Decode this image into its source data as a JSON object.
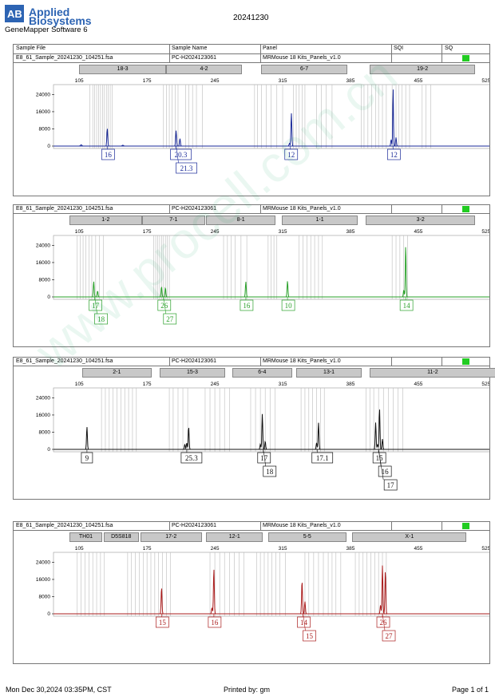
{
  "header": {
    "brand_line1": "Applied",
    "brand_line2": "Biosystems",
    "app_name": "GeneMapper Software 6",
    "doc_title": "20241230"
  },
  "columns": {
    "sample_file": "Sample File",
    "sample_name": "Sample Name",
    "panel": "Panel",
    "sqi": "SQI",
    "sq": "SQ"
  },
  "footer": {
    "date": "Mon Dec 30,2024 03:35PM, CST",
    "printed_by": "Printed by: gm",
    "page": "Page 1 of 1"
  },
  "watermark": "www.procell.com.cn",
  "colors": {
    "status_ok": "#22cc22"
  },
  "chart_data": [
    {
      "type": "line",
      "sample_file": "E8_61_Sample_20241230_104251.fsa",
      "sample_name": "PC-H2024123061",
      "panel": "MRMouse 18 Kits_Panels_v1.0",
      "color": "#1a2a99",
      "xticks": [
        105,
        175,
        245,
        315,
        385,
        455,
        525
      ],
      "yticks": [
        0,
        8000,
        16000,
        24000
      ],
      "xlim": [
        90,
        535
      ],
      "ylim": [
        0,
        27500
      ],
      "markers": [
        {
          "label": "18-3",
          "x0": 105,
          "x1": 193
        },
        {
          "label": "4-2",
          "x0": 195,
          "x1": 271
        },
        {
          "label": "6-7",
          "x0": 293,
          "x1": 380
        },
        {
          "label": "19-2",
          "x0": 405,
          "x1": 512
        }
      ],
      "bins": [
        [
          116,
          119,
          121,
          123,
          125,
          127,
          129,
          131,
          133,
          135,
          137,
          139
        ],
        [
          192,
          195,
          198,
          201,
          204,
          207
        ],
        [
          215,
          218,
          222,
          226,
          232
        ],
        [
          286,
          289,
          293,
          298,
          303,
          309,
          315
        ],
        [
          326,
          329,
          332,
          335,
          338
        ],
        [
          350,
          355,
          360,
          366
        ],
        [
          396,
          399,
          403,
          407,
          411,
          414,
          418,
          422
        ],
        [
          428,
          432,
          435,
          438,
          442,
          446
        ],
        [
          459,
          463,
          468
        ]
      ],
      "peaks": [
        [
          134,
          8200,
          1.0
        ],
        [
          205,
          7200,
          1.0
        ],
        [
          209,
          3500,
          1.0
        ],
        [
          324,
          15300,
          1.0
        ],
        [
          322,
          1200,
          1.0
        ],
        [
          427,
          3000,
          1.0
        ],
        [
          429,
          27500,
          0.8
        ],
        [
          432,
          4000,
          1.0
        ],
        [
          107,
          600,
          1.5
        ],
        [
          150,
          400,
          1.5
        ]
      ],
      "alleles": [
        {
          "x": 134,
          "labels": [
            "16"
          ]
        },
        {
          "x": 205,
          "labels": [
            "20.3",
            "21.3"
          ]
        },
        {
          "x": 323,
          "labels": [
            "12"
          ]
        },
        {
          "x": 429,
          "labels": [
            "12"
          ]
        }
      ]
    },
    {
      "type": "line",
      "sample_file": "E8_61_Sample_20241230_104251.fsa",
      "sample_name": "PC-H2024123061",
      "panel": "MRMouse 18 Kits_Panels_v1.0",
      "color": "#2aa02a",
      "xticks": [
        105,
        175,
        245,
        315,
        385,
        455,
        525
      ],
      "yticks": [
        0,
        8000,
        16000,
        24000
      ],
      "xlim": [
        90,
        535
      ],
      "ylim": [
        0,
        27500
      ],
      "markers": [
        {
          "label": "1-2",
          "x0": 95,
          "x1": 168
        },
        {
          "label": "7-1",
          "x0": 170,
          "x1": 233
        },
        {
          "label": "8-1",
          "x0": 236,
          "x1": 306
        },
        {
          "label": "1-1",
          "x0": 314,
          "x1": 391
        },
        {
          "label": "3-2",
          "x0": 401,
          "x1": 512
        }
      ],
      "bins": [
        [
          103,
          106,
          109,
          112,
          115,
          118,
          122,
          126,
          130
        ],
        [
          182,
          184,
          186,
          188,
          190,
          192,
          194,
          196,
          198
        ],
        [
          254,
          258,
          262,
          266,
          272,
          278
        ],
        [
          300,
          303,
          306,
          309
        ],
        [
          332,
          336,
          340,
          344,
          348,
          352,
          356
        ],
        [
          428,
          432,
          436,
          440,
          444
        ]
      ],
      "peaks": [
        [
          120,
          7200,
          1.0
        ],
        [
          124,
          2800,
          1.0
        ],
        [
          190,
          4800,
          1.0
        ],
        [
          194,
          4300,
          1.0
        ],
        [
          277,
          7100,
          1.0
        ],
        [
          320,
          7400,
          1.0
        ],
        [
          442,
          24200,
          0.9
        ],
        [
          440,
          3200,
          1.0
        ]
      ],
      "alleles": [
        {
          "x": 121,
          "labels": [
            "17",
            "18"
          ]
        },
        {
          "x": 192,
          "labels": [
            "26",
            "27"
          ]
        },
        {
          "x": 277,
          "labels": [
            "16"
          ]
        },
        {
          "x": 320,
          "labels": [
            "10"
          ]
        },
        {
          "x": 442,
          "labels": [
            "14"
          ]
        }
      ]
    },
    {
      "type": "line",
      "sample_file": "E8_61_Sample_20241230_104251.fsa",
      "sample_name": "PC-H2024123061",
      "panel": "MRMouse 18 Kits_Panels_v1.0",
      "color": "#111111",
      "xticks": [
        105,
        175,
        245,
        315,
        385,
        455,
        525
      ],
      "yticks": [
        0,
        8000,
        16000,
        24000
      ],
      "xlim": [
        90,
        535
      ],
      "ylim": [
        0,
        27500
      ],
      "markers": [
        {
          "label": "2-1",
          "x0": 108,
          "x1": 178
        },
        {
          "label": "15-3",
          "x0": 188,
          "x1": 254
        },
        {
          "label": "6-4",
          "x0": 263,
          "x1": 323
        },
        {
          "label": "13-1",
          "x0": 329,
          "x1": 395
        },
        {
          "label": "11-2",
          "x0": 405,
          "x1": 533
        }
      ],
      "bins": [
        [
          128,
          132,
          136,
          140,
          144,
          148,
          152,
          156,
          160,
          164
        ],
        [
          198,
          202,
          207,
          212,
          217
        ],
        [
          235,
          240,
          245,
          250,
          255,
          260
        ],
        [
          282,
          287,
          292,
          297,
          302,
          307
        ],
        [
          334,
          338,
          342,
          346,
          350,
          354,
          358
        ],
        [
          401,
          405,
          409,
          414,
          419,
          424,
          429,
          434,
          439
        ]
      ],
      "peaks": [
        [
          113,
          10500,
          1.0
        ],
        [
          214,
          2400,
          1.0
        ],
        [
          216,
          3000,
          1.0
        ],
        [
          218,
          10500,
          1.0
        ],
        [
          292,
          2400,
          1.0
        ],
        [
          294,
          16500,
          1.0
        ],
        [
          297,
          3800,
          1.0
        ],
        [
          350,
          3000,
          1.0
        ],
        [
          352,
          12500,
          1.0
        ],
        [
          411,
          12500,
          1.0
        ],
        [
          413,
          2400,
          1.0
        ],
        [
          415,
          19000,
          1.0
        ],
        [
          418,
          4800,
          1.0
        ]
      ],
      "alleles": [
        {
          "x": 113,
          "labels": [
            "9"
          ]
        },
        {
          "x": 216,
          "labels": [
            "25.3"
          ]
        },
        {
          "x": 295,
          "labels": [
            "17",
            "18"
          ]
        },
        {
          "x": 351,
          "labels": [
            "17.1"
          ]
        },
        {
          "x": 414,
          "labels": [
            "15",
            "16",
            "17"
          ]
        }
      ]
    },
    {
      "type": "line",
      "sample_file": "E8_61_Sample_20241230_104251.fsa",
      "sample_name": "PC-H2024123061",
      "panel": "MRMouse 18 Kits_Panels_v1.0",
      "color": "#aa1c1c",
      "xticks": [
        105,
        175,
        245,
        315,
        385,
        455,
        525
      ],
      "yticks": [
        0,
        8000,
        16000,
        24000
      ],
      "xlim": [
        90,
        535
      ],
      "ylim": [
        0,
        27500
      ],
      "markers": [
        {
          "label": "TH01",
          "x0": 95,
          "x1": 127
        },
        {
          "label": "D5S818",
          "x0": 130,
          "x1": 165
        },
        {
          "label": "17-2",
          "x0": 168,
          "x1": 230
        },
        {
          "label": "12-1",
          "x0": 236,
          "x1": 293
        },
        {
          "label": "5-5",
          "x0": 300,
          "x1": 379
        },
        {
          "label": "X-1",
          "x0": 387,
          "x1": 503
        }
      ],
      "bins": [
        [
          103,
          107,
          111,
          115,
          119,
          123,
          127,
          131
        ],
        [
          155,
          159,
          163,
          167,
          171,
          175,
          179,
          183,
          187,
          191,
          195,
          199
        ],
        [
          240,
          245,
          250,
          255,
          260,
          265,
          270,
          275
        ],
        [
          288,
          292,
          296,
          300,
          304,
          308,
          312,
          318
        ],
        [
          338,
          342,
          347,
          352,
          357,
          362,
          366,
          370,
          375
        ],
        [
          390,
          394,
          398,
          402,
          406,
          410,
          414,
          418,
          422
        ]
      ],
      "peaks": [
        [
          190,
          12200,
          1.0
        ],
        [
          244,
          21000,
          1.0
        ],
        [
          242,
          2800,
          1.0
        ],
        [
          335,
          15400,
          1.0
        ],
        [
          338,
          5700,
          1.0
        ],
        [
          416,
          4000,
          1.0
        ],
        [
          418,
          22500,
          1.0
        ],
        [
          421,
          20200,
          1.0
        ]
      ],
      "alleles": [
        {
          "x": 190,
          "labels": [
            "15"
          ]
        },
        {
          "x": 244,
          "labels": [
            "16"
          ]
        },
        {
          "x": 336,
          "labels": [
            "14",
            "15"
          ]
        },
        {
          "x": 418,
          "labels": [
            "26",
            "27"
          ]
        }
      ]
    }
  ]
}
